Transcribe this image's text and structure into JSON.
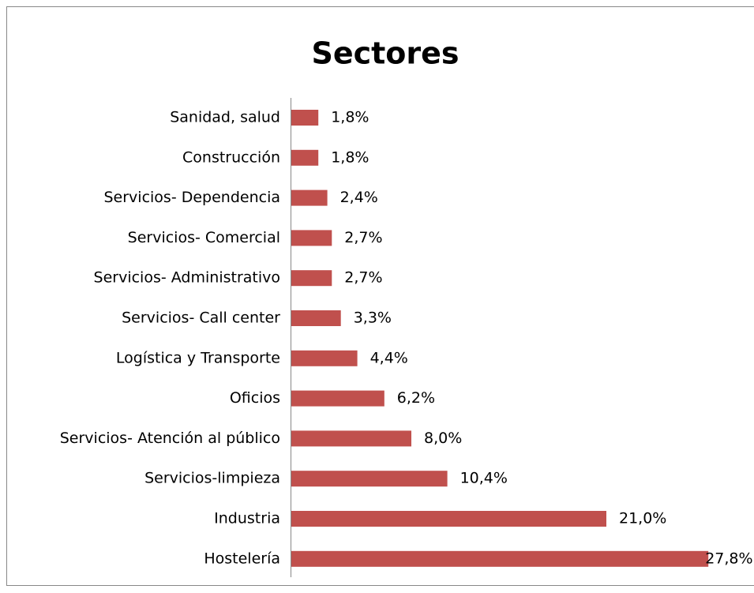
{
  "chart_data": {
    "type": "bar",
    "orientation": "horizontal",
    "title": "Sectores",
    "categories": [
      "Sanidad, salud",
      "Construcción",
      "Servicios- Dependencia",
      "Servicios- Comercial",
      "Servicios- Administrativo",
      "Servicios- Call center",
      "Logística y Transporte",
      "Oficios",
      "Servicios- Atención al público",
      "Servicios-limpieza",
      "Industria",
      "Hostelería"
    ],
    "values": [
      1.8,
      1.8,
      2.4,
      2.7,
      2.7,
      3.3,
      4.4,
      6.2,
      8.0,
      10.4,
      21.0,
      27.8
    ],
    "value_labels": [
      "1,8%",
      "1,8%",
      "2,4%",
      "2,7%",
      "2,7%",
      "3,3%",
      "4,4%",
      "6,2%",
      "8,0%",
      "10,4%",
      "21,0%",
      "27,8%"
    ],
    "color": "#c0504d"
  }
}
